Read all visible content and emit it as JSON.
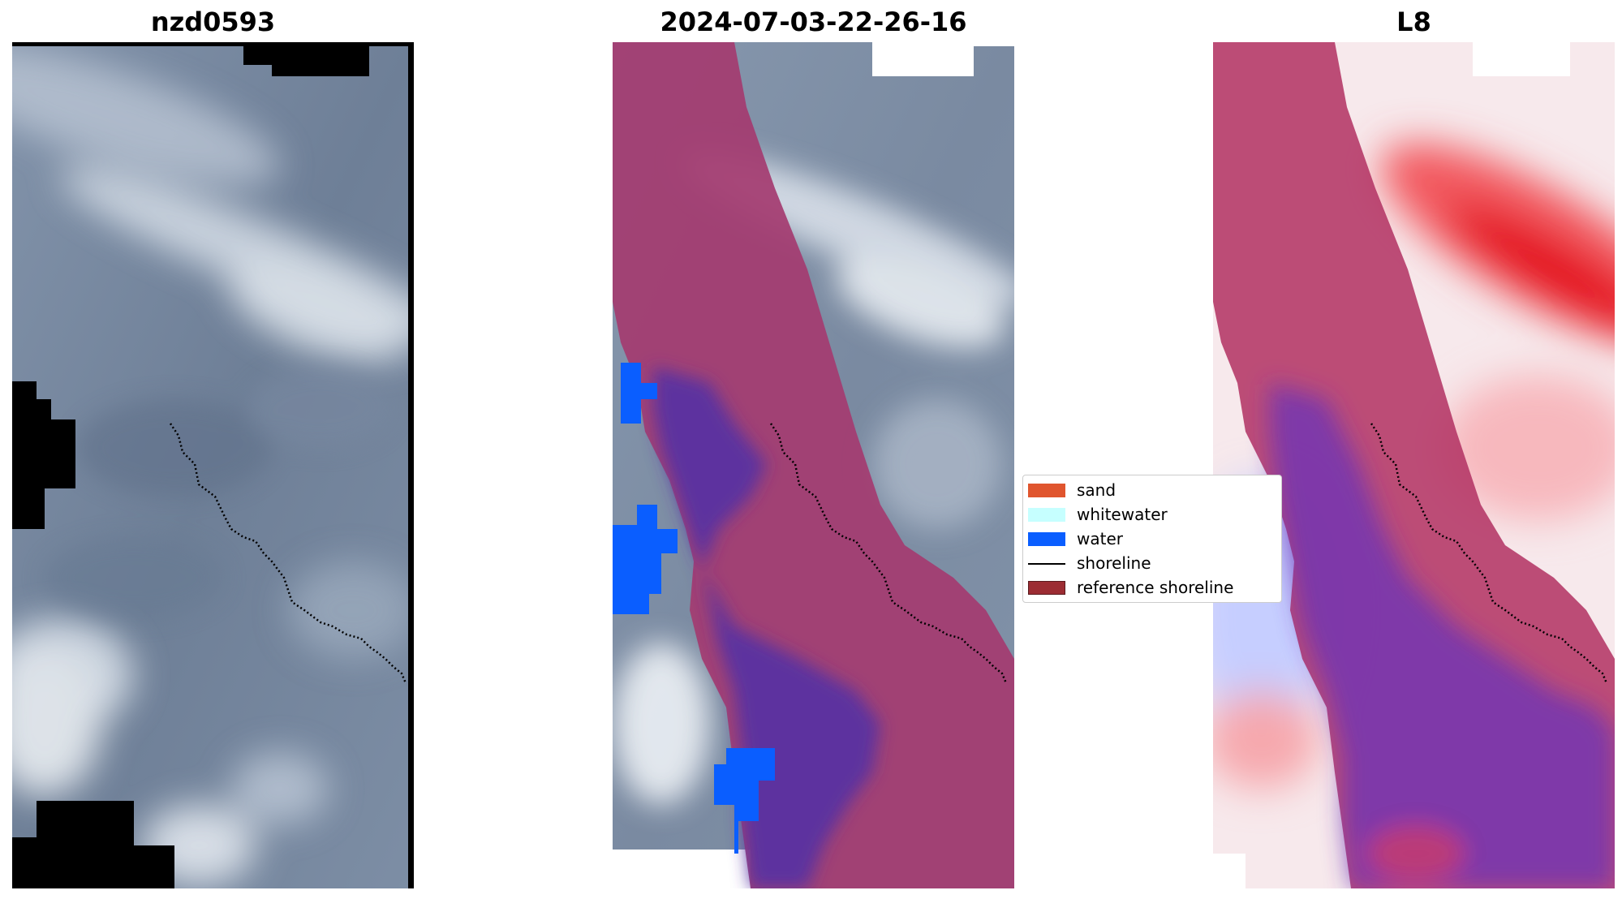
{
  "panels": [
    {
      "title": "nzd0593"
    },
    {
      "title": "2024-07-03-22-26-16"
    },
    {
      "title": "L8"
    }
  ],
  "legend": {
    "entries": [
      {
        "label": "sand",
        "kind": "patch",
        "color": "#e0552e"
      },
      {
        "label": "whitewater",
        "kind": "patch",
        "color": "#c6ffff"
      },
      {
        "label": "water",
        "kind": "patch",
        "color": "#0a5eff"
      },
      {
        "label": "shoreline",
        "kind": "line",
        "color": "#000000"
      },
      {
        "label": "reference shoreline",
        "kind": "patch",
        "color": "#9c2c33"
      }
    ]
  },
  "colors": {
    "cloud_base": "#6d7e96",
    "cloud_light": "#e9eef4",
    "classification_sand_overlay": "#a33a6e",
    "classification_water_overlay": "#5a2fa0",
    "water": "#0a5eff",
    "index_positive": "#e8102e",
    "index_negative": "#2035f0",
    "mask": "#000000"
  }
}
